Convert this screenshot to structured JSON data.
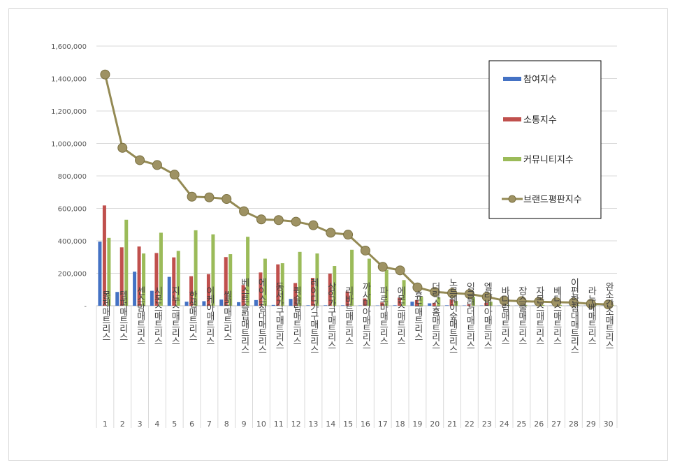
{
  "chart_data": {
    "type": "bar",
    "ylim": [
      0,
      1600000
    ],
    "yticks": [
      "-",
      "200,000",
      "400,000",
      "600,000",
      "800,000",
      "1,000,000",
      "1,200,000",
      "1,400,000",
      "1,600,000"
    ],
    "ytick_values": [
      0,
      200000,
      400000,
      600000,
      800000,
      1000000,
      1200000,
      1400000,
      1600000
    ],
    "grid": true,
    "legend_position": "right",
    "categories": [
      "몽제매트리스",
      "템퍼매트리스",
      "센스맘매트리스",
      "시몬스매트리스",
      "지누스매트리스",
      "한샘매트리스",
      "이케아매트리스",
      "씰리매트리스",
      "베스트슬립매트리스",
      "에이스침대매트리스",
      "동서가구매트리스",
      "퀵슬립매트리스",
      "레이디가구매트리스",
      "삼익가구매트리스",
      "리바트매트리스",
      "까사미아매트리스",
      "파로마매트리스",
      "에몬스매트리스",
      "휴도매트리스",
      "더릭스홈매트리스",
      "노르웨이숲매트리스",
      "잉글랜더매트리스",
      "엘라비아매트리스",
      "바디럽매트리스",
      "잠스쿨매트리스",
      "자몬스매트리스",
      "베디스매트리스",
      "이편한침대매트리스",
      "라누베매트리스",
      "완소간소매트리스"
    ],
    "ranks": [
      "1",
      "2",
      "3",
      "4",
      "5",
      "6",
      "7",
      "8",
      "9",
      "10",
      "11",
      "12",
      "13",
      "14",
      "15",
      "16",
      "17",
      "18",
      "19",
      "20",
      "21",
      "22",
      "23",
      "24",
      "25",
      "26",
      "27",
      "28",
      "29",
      "30"
    ],
    "series": [
      {
        "name": "참여지수",
        "kind": "bar",
        "color": "#4472c4",
        "values": [
          395000,
          85000,
          210000,
          92000,
          178000,
          25000,
          28000,
          38000,
          22000,
          35000,
          5000,
          42000,
          3000,
          3000,
          3000,
          2000,
          2000,
          3000,
          25000,
          15000,
          3000,
          2000,
          2000,
          1000,
          1000,
          1000,
          1000,
          1000,
          1000,
          1000
        ]
      },
      {
        "name": "소통지수",
        "kind": "bar",
        "color": "#c0504d",
        "values": [
          618000,
          360000,
          365000,
          325000,
          298000,
          182000,
          195000,
          300000,
          128000,
          205000,
          255000,
          140000,
          172000,
          198000,
          88000,
          45000,
          20000,
          50000,
          35000,
          18000,
          38000,
          8000,
          18000,
          3000,
          2000,
          2000,
          2000,
          2000,
          2000,
          2000
        ]
      },
      {
        "name": "커뮤니티지수",
        "kind": "bar",
        "color": "#9bbb59",
        "values": [
          418000,
          530000,
          322000,
          450000,
          338000,
          465000,
          440000,
          318000,
          425000,
          290000,
          262000,
          332000,
          322000,
          245000,
          345000,
          290000,
          222000,
          158000,
          55000,
          52000,
          30000,
          55000,
          25000,
          5000,
          5000,
          5000,
          5000,
          5000,
          5000,
          5000
        ]
      },
      {
        "name": "브랜드평판지수",
        "kind": "line",
        "color": "#948a54",
        "values": [
          1425000,
          973000,
          897000,
          867000,
          808000,
          672000,
          668000,
          658000,
          582000,
          532000,
          528000,
          518000,
          496000,
          450000,
          438000,
          340000,
          240000,
          218000,
          113000,
          85000,
          78000,
          72000,
          55000,
          32000,
          28000,
          25000,
          22000,
          20000,
          12000,
          8000
        ]
      }
    ]
  }
}
